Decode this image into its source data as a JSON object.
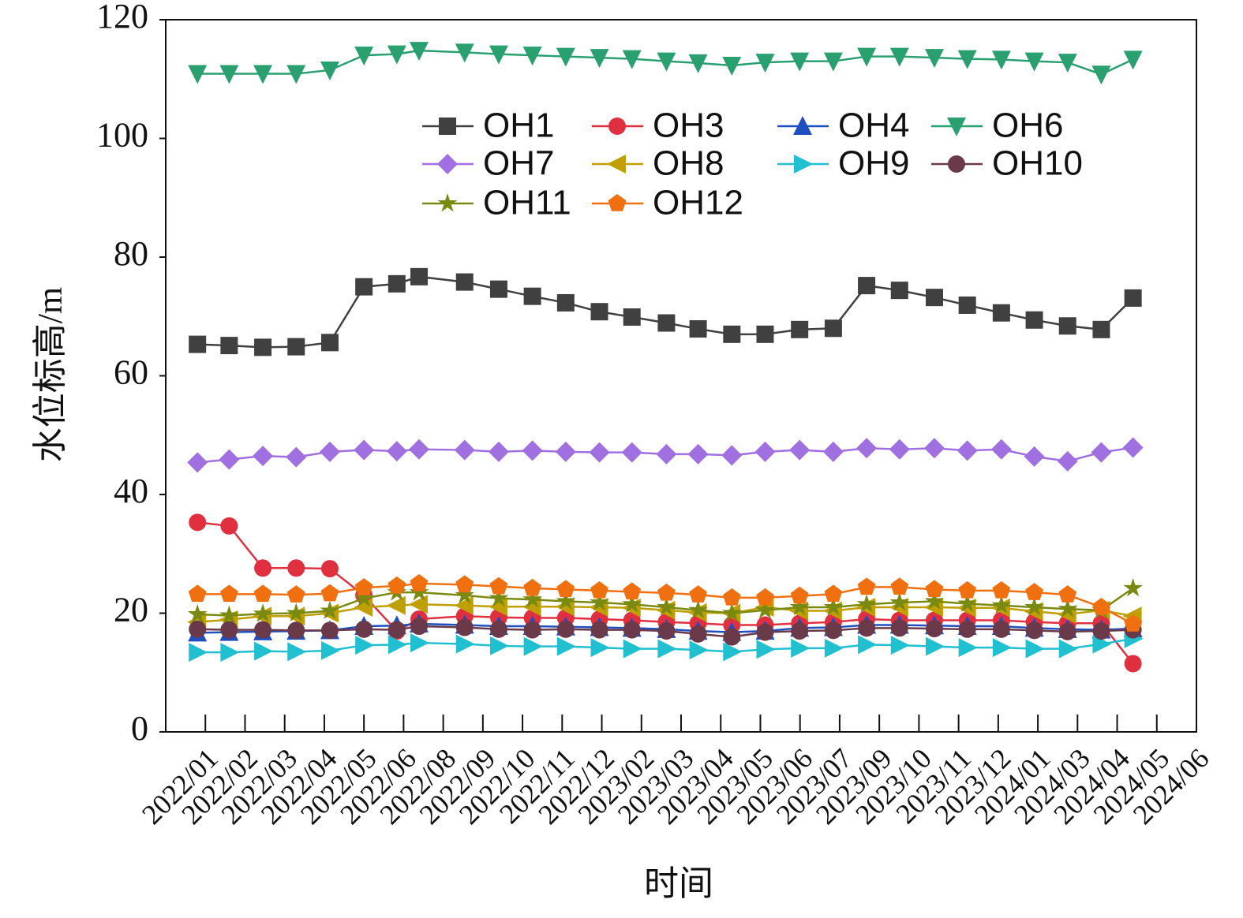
{
  "chart_data": {
    "type": "line",
    "xlabel": "时间",
    "ylabel": "水位标高/m",
    "xlim": [
      -1,
      25
    ],
    "ylim": [
      0,
      120
    ],
    "yticks": [
      0,
      20,
      40,
      60,
      80,
      100,
      120
    ],
    "xticks": [
      {
        "value": 0,
        "label": "2022/01"
      },
      {
        "value": 1,
        "label": "2022/02"
      },
      {
        "value": 2,
        "label": "2022/03"
      },
      {
        "value": 3,
        "label": "2022/04"
      },
      {
        "value": 4,
        "label": "2022/05"
      },
      {
        "value": 5,
        "label": "2022/06"
      },
      {
        "value": 6,
        "label": "2022/08"
      },
      {
        "value": 7,
        "label": "2022/09"
      },
      {
        "value": 8,
        "label": "2022/10"
      },
      {
        "value": 9,
        "label": "2022/11"
      },
      {
        "value": 10,
        "label": "2022/12"
      },
      {
        "value": 11,
        "label": "2023/02"
      },
      {
        "value": 12,
        "label": "2023/03"
      },
      {
        "value": 13,
        "label": "2023/04"
      },
      {
        "value": 14,
        "label": "2023/05"
      },
      {
        "value": 15,
        "label": "2023/06"
      },
      {
        "value": 16,
        "label": "2023/07"
      },
      {
        "value": 17,
        "label": "2023/09"
      },
      {
        "value": 18,
        "label": "2023/10"
      },
      {
        "value": 19,
        "label": "2023/11"
      },
      {
        "value": 20,
        "label": "2023/12"
      },
      {
        "value": 21,
        "label": "2024/01"
      },
      {
        "value": 22,
        "label": "2024/03"
      },
      {
        "value": 23,
        "label": "2024/04"
      },
      {
        "value": 24,
        "label": "2024/05"
      },
      {
        "value": 25,
        "label": "2024/06"
      }
    ],
    "x": [
      -0.2,
      0.6,
      1.45,
      2.29,
      3.14,
      4.0,
      4.83,
      5.39,
      6.54,
      7.4,
      8.25,
      9.09,
      9.94,
      10.76,
      11.63,
      12.43,
      13.28,
      14.12,
      14.99,
      15.84,
      16.68,
      17.51,
      18.39,
      19.22,
      20.08,
      20.91,
      21.75,
      22.6,
      23.4
    ],
    "series": [
      {
        "name": "OH1",
        "color": "#404040",
        "marker": "square",
        "values": [
          65.3,
          65.1,
          64.8,
          64.9,
          65.6,
          75,
          75.5,
          76.7,
          75.8,
          74.6,
          73.4,
          72.3,
          70.8,
          69.9,
          68.9,
          67.9,
          67,
          67,
          67.8,
          68,
          75.2,
          74.4,
          73.2,
          71.9,
          70.6,
          69.4,
          68.4,
          67.8,
          73.1
        ]
      },
      {
        "name": "OH3",
        "color": "#e03040",
        "marker": "circle",
        "values": [
          35.3,
          34.7,
          27.6,
          27.6,
          27.5,
          23,
          17,
          19,
          19.5,
          19.3,
          19.2,
          19.2,
          19,
          18.8,
          18.5,
          18.3,
          18,
          18,
          18.3,
          18.5,
          19,
          18.8,
          18.8,
          18.8,
          18.8,
          18.5,
          18.3,
          18.3,
          11.5
        ]
      },
      {
        "name": "OH4",
        "color": "#1f4fbf",
        "marker": "triangle-up",
        "values": [
          16.7,
          16.8,
          16.9,
          17,
          17.1,
          17.8,
          17.9,
          18.2,
          18,
          17.8,
          17.8,
          17.7,
          17.6,
          17.5,
          17.3,
          17,
          16.8,
          17,
          17.5,
          17.6,
          18,
          18,
          17.9,
          17.8,
          17.8,
          17.5,
          17.3,
          17.2,
          17.4
        ]
      },
      {
        "name": "OH6",
        "color": "#2aa070",
        "marker": "triangle-down",
        "values": [
          110.9,
          110.9,
          110.9,
          110.9,
          111.5,
          114,
          114.2,
          114.8,
          114.5,
          114.2,
          114,
          113.8,
          113.6,
          113.4,
          113,
          112.7,
          112.3,
          112.8,
          113,
          113,
          113.8,
          113.8,
          113.6,
          113.4,
          113.3,
          113,
          112.8,
          110.8,
          113.3
        ]
      },
      {
        "name": "OH7",
        "color": "#a070e0",
        "marker": "diamond",
        "values": [
          45.4,
          45.9,
          46.5,
          46.3,
          47.2,
          47.5,
          47.3,
          47.6,
          47.5,
          47.2,
          47.4,
          47.2,
          47.1,
          47.1,
          46.8,
          46.8,
          46.6,
          47.2,
          47.5,
          47.2,
          47.8,
          47.6,
          47.8,
          47.4,
          47.6,
          46.4,
          45.6,
          47.1,
          47.9
        ]
      },
      {
        "name": "OH8",
        "color": "#c0a000",
        "marker": "triangle-left",
        "values": [
          18.5,
          18.9,
          19.5,
          19.5,
          20,
          21,
          21.3,
          21.5,
          21.3,
          21.1,
          21.1,
          21.1,
          21,
          20.9,
          20.5,
          20.1,
          20,
          21,
          20.4,
          20.4,
          21,
          21,
          21,
          20.9,
          20.9,
          20.3,
          19.8,
          20.5,
          19.5
        ]
      },
      {
        "name": "OH9",
        "color": "#20c0d0",
        "marker": "triangle-right",
        "values": [
          13.4,
          13.4,
          13.6,
          13.5,
          13.7,
          14.6,
          14.7,
          15,
          14.8,
          14.5,
          14.4,
          14.4,
          14.2,
          14,
          14,
          13.8,
          13.5,
          13.9,
          14.1,
          14.1,
          14.7,
          14.6,
          14.4,
          14.2,
          14.2,
          14,
          14,
          14.8,
          15.7
        ]
      },
      {
        "name": "OH10",
        "color": "#6a3a4a",
        "marker": "circle",
        "values": [
          17.3,
          17.2,
          17.2,
          17.1,
          17.1,
          17.3,
          17.2,
          17.8,
          17.6,
          17.3,
          17.2,
          17.3,
          17.2,
          17.2,
          17,
          16.5,
          16,
          16.8,
          17,
          17.1,
          17.5,
          17.5,
          17.4,
          17.3,
          17.3,
          17.1,
          16.9,
          17,
          17.2
        ]
      },
      {
        "name": "OH11",
        "color": "#7a8a10",
        "marker": "star",
        "values": [
          19.8,
          19.6,
          19.9,
          20,
          20.4,
          22.5,
          23.5,
          23.5,
          23,
          22.5,
          22.3,
          22,
          21.8,
          21.5,
          21,
          20.5,
          20,
          20.5,
          21,
          21,
          21.5,
          21.8,
          22,
          21.6,
          21.3,
          21,
          20.7,
          20.5,
          24.2
        ]
      },
      {
        "name": "OH12",
        "color": "#f07010",
        "marker": "pentagon",
        "values": [
          23.2,
          23.2,
          23.2,
          23.1,
          23.3,
          24.3,
          24.6,
          25,
          24.8,
          24.5,
          24.2,
          24,
          23.8,
          23.6,
          23.4,
          23.1,
          22.6,
          22.6,
          22.9,
          23.2,
          24.4,
          24.4,
          24,
          23.8,
          23.8,
          23.5,
          23.1,
          21,
          18.2
        ]
      }
    ]
  }
}
